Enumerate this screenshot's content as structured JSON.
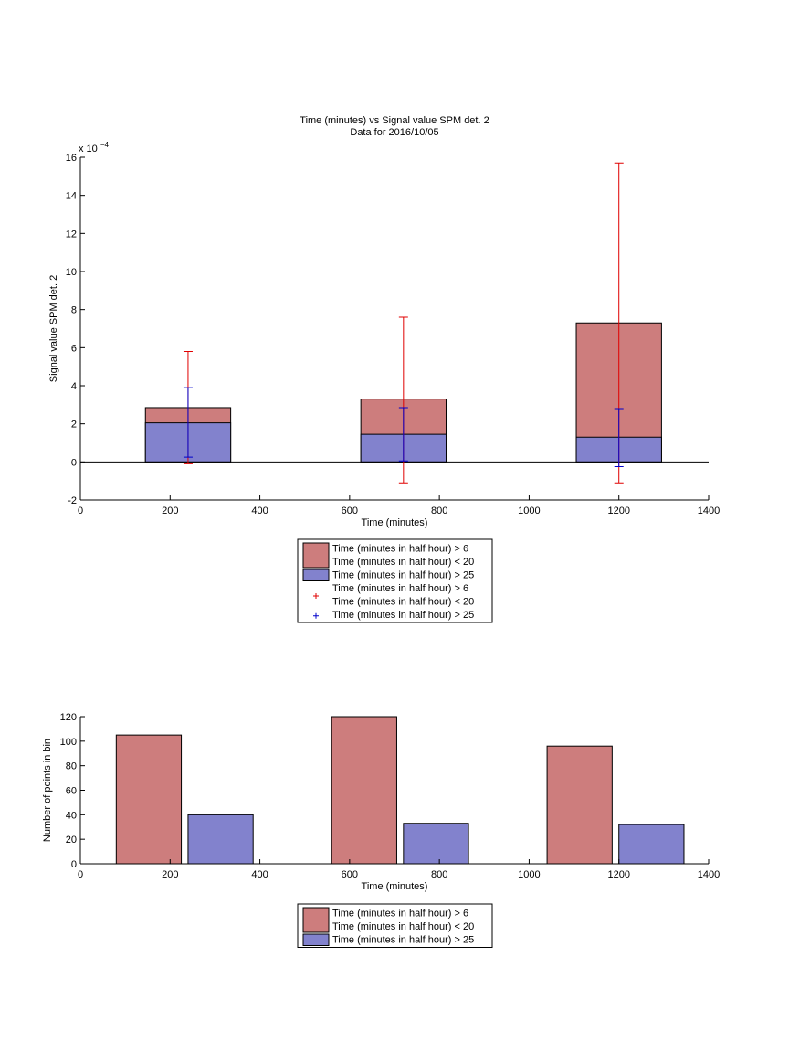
{
  "chart_data": [
    {
      "type": "bar",
      "title": "Time (minutes) vs Signal value SPM det. 2",
      "subtitle": "Data for 2016/10/05",
      "xlabel": "Time (minutes)",
      "ylabel": "Signal value SPM det. 2",
      "y_exponent_label": "x 10",
      "y_exponent_power": "−4",
      "xlim": [
        0,
        1400
      ],
      "ylim": [
        -2,
        16
      ],
      "x_ticks": [
        0,
        200,
        400,
        600,
        800,
        1000,
        1200,
        1400
      ],
      "y_ticks": [
        -2,
        0,
        2,
        4,
        6,
        8,
        10,
        12,
        14,
        16
      ],
      "bars": {
        "categories": [
          240,
          720,
          1200
        ],
        "series": [
          {
            "name": "Time (minutes in half hour) > 6 Time (minutes in half hour) < 20",
            "color": "#cd7d7d",
            "values": [
              2.85,
              3.3,
              7.3
            ]
          },
          {
            "name": "Time (minutes in half hour) > 25",
            "color": "#8282cd",
            "values": [
              2.05,
              1.45,
              1.3
            ]
          }
        ]
      },
      "errorbars": [
        {
          "name": "Time (minutes in half hour) > 6 Time (minutes in half hour) < 20",
          "color": "#e00000",
          "points": [
            {
              "x": 240,
              "low": -0.1,
              "high": 5.8
            },
            {
              "x": 720,
              "low": -1.1,
              "high": 7.6
            },
            {
              "x": 1200,
              "low": -1.1,
              "high": 15.7
            }
          ]
        },
        {
          "name": "Time (minutes in half hour) > 25",
          "color": "#0000cc",
          "points": [
            {
              "x": 240,
              "low": 0.25,
              "high": 3.9
            },
            {
              "x": 720,
              "low": 0.05,
              "high": 2.85
            },
            {
              "x": 1200,
              "low": -0.25,
              "high": 2.8
            }
          ]
        }
      ],
      "legend": {
        "placement": "below",
        "entries": [
          {
            "swatch": "bar",
            "color": "#cd7d7d",
            "lines": [
              "Time (minutes in half hour) > 6",
              "Time (minutes in half hour) < 20"
            ]
          },
          {
            "swatch": "bar",
            "color": "#8282cd",
            "lines": [
              "Time (minutes in half hour) > 25"
            ]
          },
          {
            "swatch": "marker",
            "color": "#e00000",
            "lines": [
              "Time (minutes in half hour) > 6",
              "Time (minutes in half hour) < 20"
            ]
          },
          {
            "swatch": "marker",
            "color": "#0000cc",
            "lines": [
              "Time (minutes in half hour) > 25"
            ]
          }
        ]
      }
    },
    {
      "type": "bar",
      "xlabel": "Time (minutes)",
      "ylabel": "Number of points in bin",
      "xlim": [
        0,
        1400
      ],
      "ylim": [
        0,
        120
      ],
      "x_ticks": [
        0,
        200,
        400,
        600,
        800,
        1000,
        1200,
        1400
      ],
      "y_ticks": [
        0,
        20,
        40,
        60,
        80,
        100,
        120
      ],
      "categories": [
        240,
        720,
        1200
      ],
      "series": [
        {
          "name": "Time (minutes in half hour) > 6 Time (minutes in half hour) < 20",
          "color": "#cd7d7d",
          "values": [
            105,
            120,
            96
          ]
        },
        {
          "name": "Time (minutes in half hour) > 25",
          "color": "#8282cd",
          "values": [
            40,
            33,
            32
          ]
        }
      ],
      "legend": {
        "placement": "below",
        "entries": [
          {
            "swatch": "bar",
            "color": "#cd7d7d",
            "lines": [
              "Time (minutes in half hour) > 6",
              "Time (minutes in half hour) < 20"
            ]
          },
          {
            "swatch": "bar",
            "color": "#8282cd",
            "lines": [
              "Time (minutes in half hour) > 25"
            ]
          }
        ]
      }
    }
  ]
}
